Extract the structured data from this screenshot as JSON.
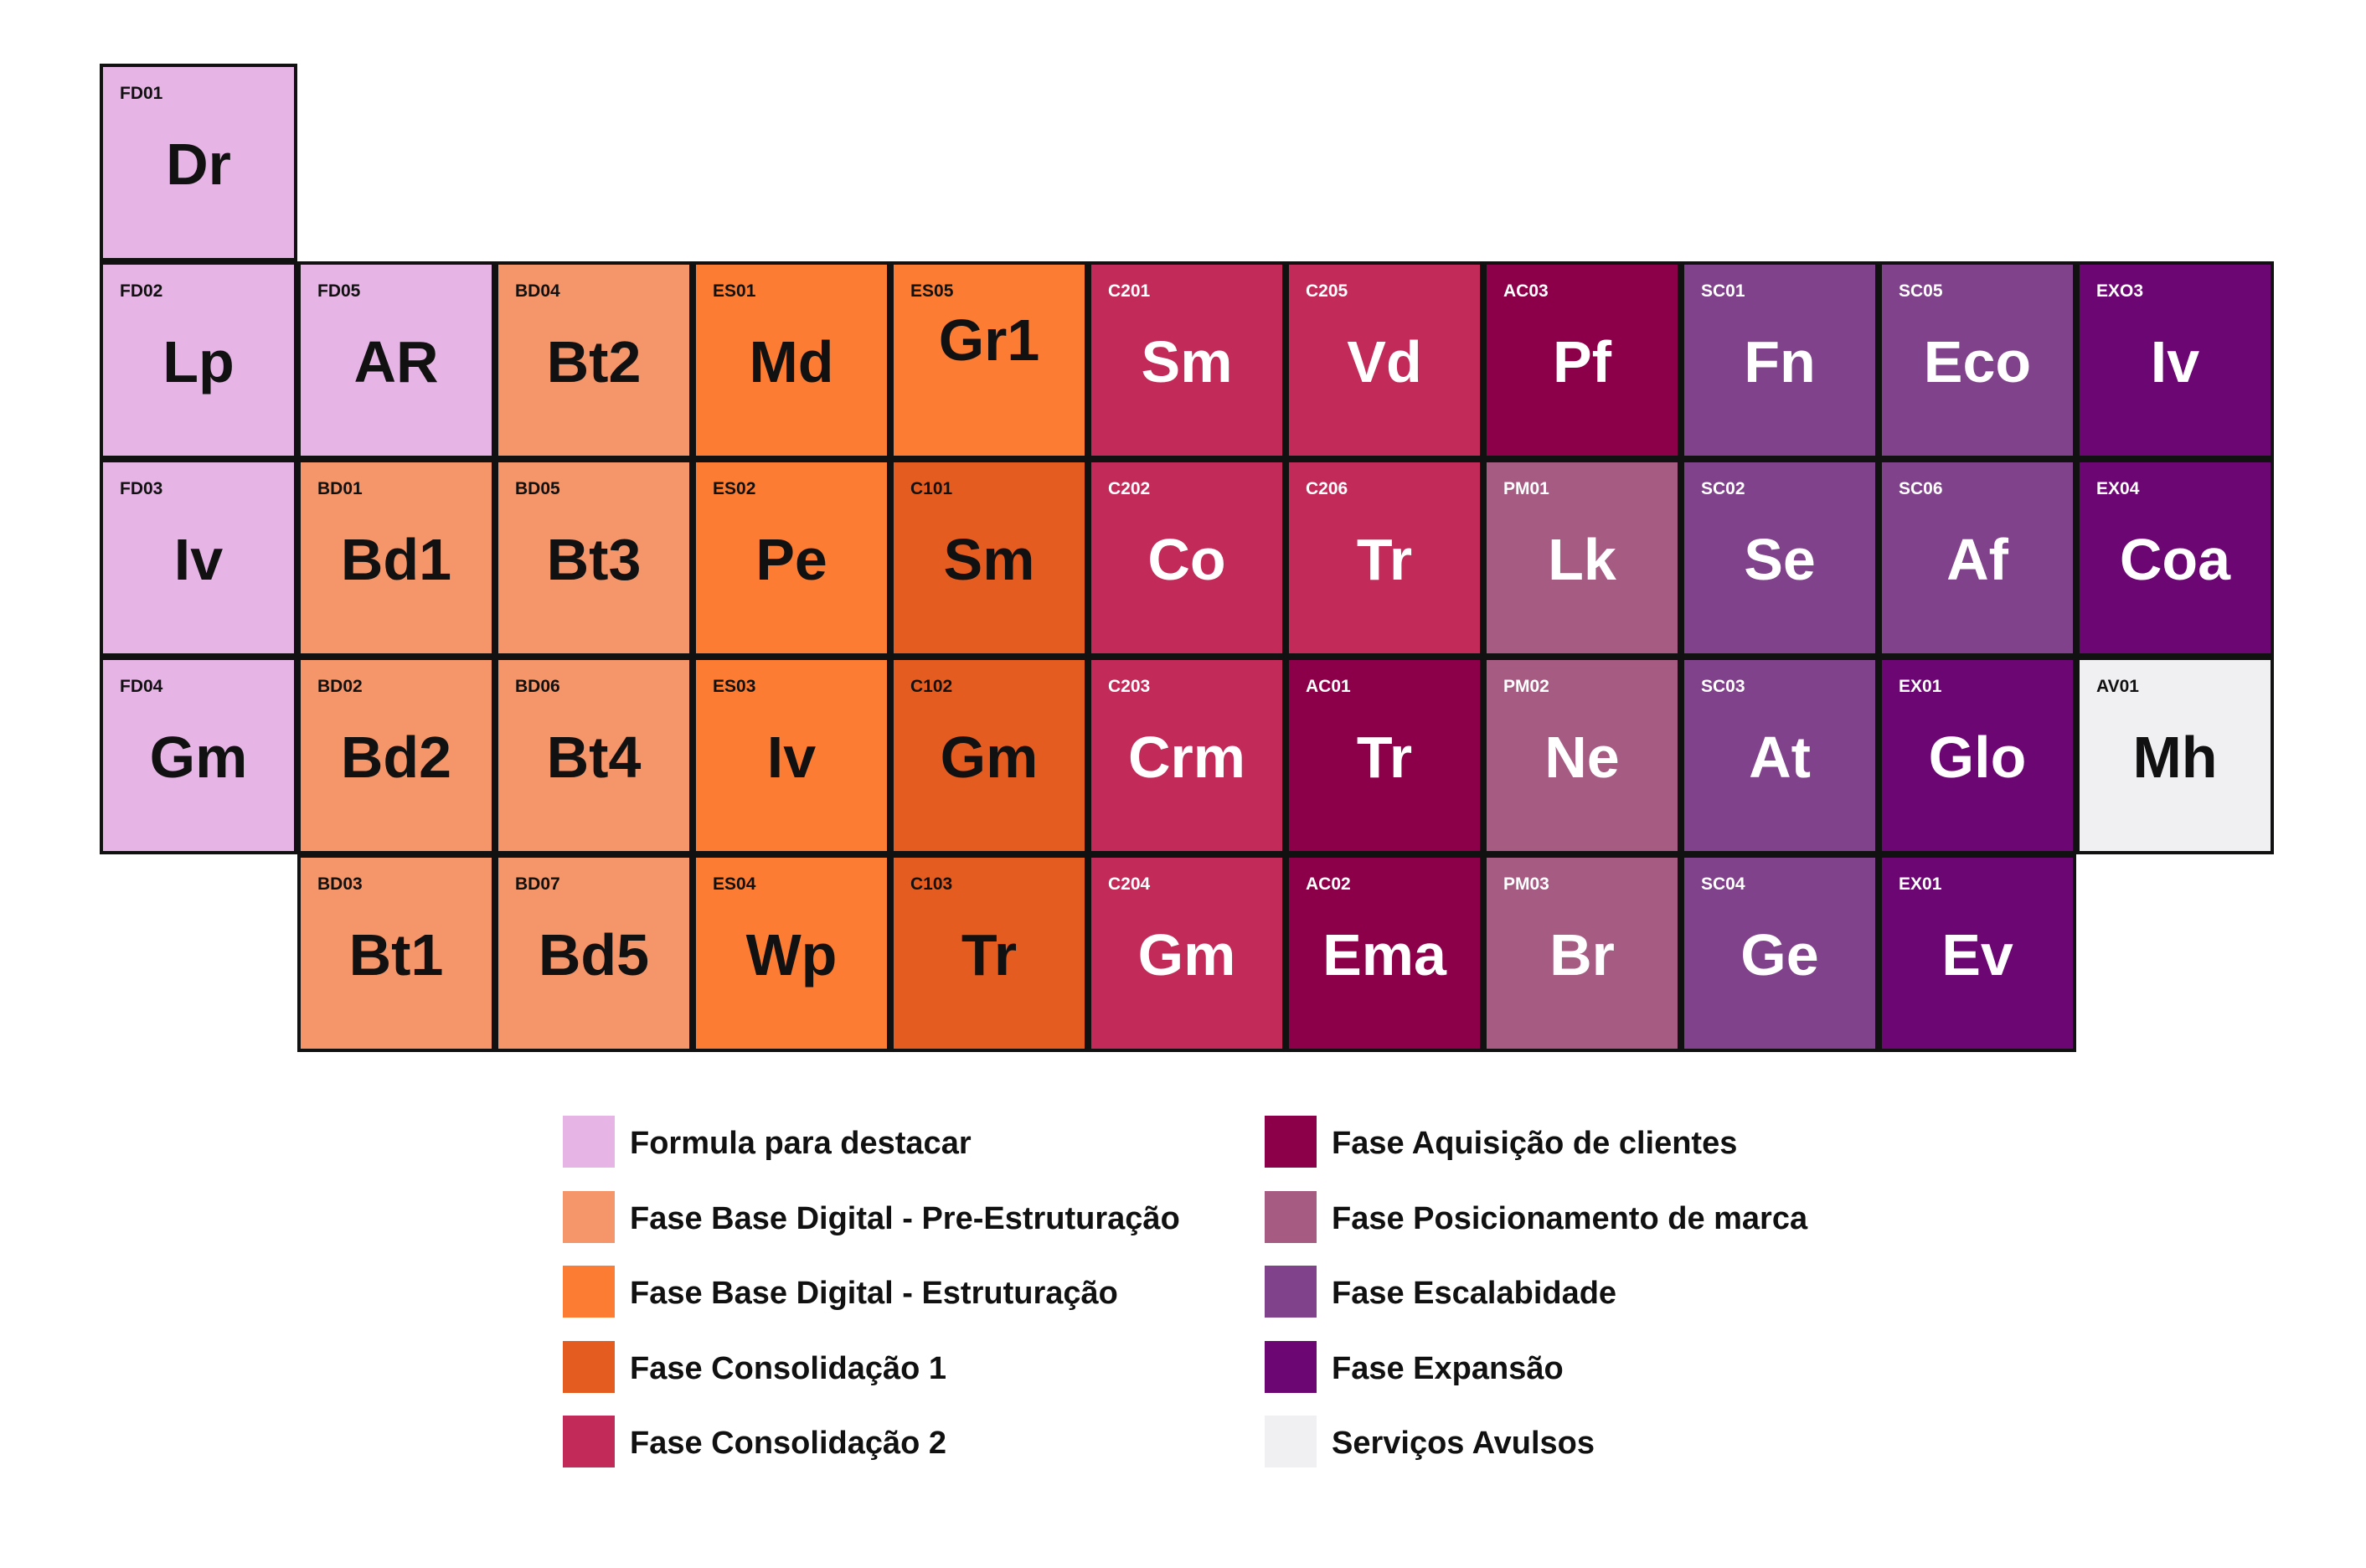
{
  "colors": {
    "formula": "#E6B5E6",
    "pre": "#F5956A",
    "estr": "#FC7C33",
    "cons1": "#E55C21",
    "cons2": "#C12A59",
    "aquis": "#8C0049",
    "pos": "#A65B83",
    "esc": "#80428A",
    "exp": "#6B0672",
    "avulsos": "#F0EFF1"
  },
  "elements": [
    {
      "code": "FD01",
      "sym": "Dr",
      "group": "formula",
      "col": 0,
      "row": 0
    },
    {
      "code": "FD02",
      "sym": "Lp",
      "group": "formula",
      "col": 0,
      "row": 1
    },
    {
      "code": "FD05",
      "sym": "AR",
      "group": "formula",
      "col": 1,
      "row": 1
    },
    {
      "code": "BD04",
      "sym": "Bt2",
      "group": "pre",
      "col": 2,
      "row": 1
    },
    {
      "code": "ES01",
      "sym": "Md",
      "group": "estr",
      "col": 3,
      "row": 1
    },
    {
      "code": "ES05",
      "sym": "Gr1",
      "group": "estr",
      "col": 4,
      "row": 1,
      "raised": true
    },
    {
      "code": "C201",
      "sym": "Sm",
      "group": "cons2",
      "col": 5,
      "row": 1
    },
    {
      "code": "C205",
      "sym": "Vd",
      "group": "cons2",
      "col": 6,
      "row": 1
    },
    {
      "code": "AC03",
      "sym": "Pf",
      "group": "aquis",
      "col": 7,
      "row": 1
    },
    {
      "code": "SC01",
      "sym": "Fn",
      "group": "esc",
      "col": 8,
      "row": 1
    },
    {
      "code": "SC05",
      "sym": "Eco",
      "group": "esc",
      "col": 9,
      "row": 1
    },
    {
      "code": "EXO3",
      "sym": "Iv",
      "group": "exp",
      "col": 10,
      "row": 1
    },
    {
      "code": "FD03",
      "sym": "Iv",
      "group": "formula",
      "col": 0,
      "row": 2
    },
    {
      "code": "BD01",
      "sym": "Bd1",
      "group": "pre",
      "col": 1,
      "row": 2
    },
    {
      "code": "BD05",
      "sym": "Bt3",
      "group": "pre",
      "col": 2,
      "row": 2
    },
    {
      "code": "ES02",
      "sym": "Pe",
      "group": "estr",
      "col": 3,
      "row": 2
    },
    {
      "code": "C101",
      "sym": "Sm",
      "group": "cons1",
      "col": 4,
      "row": 2
    },
    {
      "code": "C202",
      "sym": "Co",
      "group": "cons2",
      "col": 5,
      "row": 2
    },
    {
      "code": "C206",
      "sym": "Tr",
      "group": "cons2",
      "col": 6,
      "row": 2
    },
    {
      "code": "PM01",
      "sym": "Lk",
      "group": "pos",
      "col": 7,
      "row": 2
    },
    {
      "code": "SC02",
      "sym": "Se",
      "group": "esc",
      "col": 8,
      "row": 2
    },
    {
      "code": "SC06",
      "sym": "Af",
      "group": "esc",
      "col": 9,
      "row": 2
    },
    {
      "code": "EX04",
      "sym": "Coa",
      "group": "exp",
      "col": 10,
      "row": 2
    },
    {
      "code": "FD04",
      "sym": "Gm",
      "group": "formula",
      "col": 0,
      "row": 3
    },
    {
      "code": "BD02",
      "sym": "Bd2",
      "group": "pre",
      "col": 1,
      "row": 3
    },
    {
      "code": "BD06",
      "sym": "Bt4",
      "group": "pre",
      "col": 2,
      "row": 3
    },
    {
      "code": "ES03",
      "sym": "Iv",
      "group": "estr",
      "col": 3,
      "row": 3
    },
    {
      "code": "C102",
      "sym": "Gm",
      "group": "cons1",
      "col": 4,
      "row": 3
    },
    {
      "code": "C203",
      "sym": "Crm",
      "group": "cons2",
      "col": 5,
      "row": 3
    },
    {
      "code": "AC01",
      "sym": "Tr",
      "group": "aquis",
      "col": 6,
      "row": 3
    },
    {
      "code": "PM02",
      "sym": "Ne",
      "group": "pos",
      "col": 7,
      "row": 3
    },
    {
      "code": "SC03",
      "sym": "At",
      "group": "esc",
      "col": 8,
      "row": 3
    },
    {
      "code": "EX01",
      "sym": "Glo",
      "group": "exp",
      "col": 9,
      "row": 3
    },
    {
      "code": "AV01",
      "sym": "Mh",
      "group": "avulsos",
      "col": 10,
      "row": 3
    },
    {
      "code": "BD03",
      "sym": "Bt1",
      "group": "pre",
      "col": 1,
      "row": 4
    },
    {
      "code": "BD07",
      "sym": "Bd5",
      "group": "pre",
      "col": 2,
      "row": 4
    },
    {
      "code": "ES04",
      "sym": "Wp",
      "group": "estr",
      "col": 3,
      "row": 4
    },
    {
      "code": "C103",
      "sym": "Tr",
      "group": "cons1",
      "col": 4,
      "row": 4
    },
    {
      "code": "C204",
      "sym": "Gm",
      "group": "cons2",
      "col": 5,
      "row": 4
    },
    {
      "code": "AC02",
      "sym": "Ema",
      "group": "aquis",
      "col": 6,
      "row": 4
    },
    {
      "code": "PM03",
      "sym": "Br",
      "group": "pos",
      "col": 7,
      "row": 4
    },
    {
      "code": "SC04",
      "sym": "Ge",
      "group": "esc",
      "col": 8,
      "row": 4
    },
    {
      "code": "EX01",
      "sym": "Ev",
      "group": "exp",
      "col": 9,
      "row": 4
    }
  ],
  "legend": [
    {
      "group": "formula",
      "label": "Formula para destacar"
    },
    {
      "group": "pre",
      "label": "Fase Base Digital - Pre-Estruturação"
    },
    {
      "group": "estr",
      "label": "Fase Base Digital - Estruturação"
    },
    {
      "group": "cons1",
      "label": "Fase Consolidação 1"
    },
    {
      "group": "cons2",
      "label": "Fase Consolidação 2"
    },
    {
      "group": "aquis",
      "label": "Fase Aquisição de clientes"
    },
    {
      "group": "pos",
      "label": "Fase Posicionamento de marca"
    },
    {
      "group": "esc",
      "label": "Fase Escalabidade"
    },
    {
      "group": "exp",
      "label": "Fase Expansão"
    },
    {
      "group": "avulsos",
      "label": "Serviços Avulsos"
    }
  ]
}
